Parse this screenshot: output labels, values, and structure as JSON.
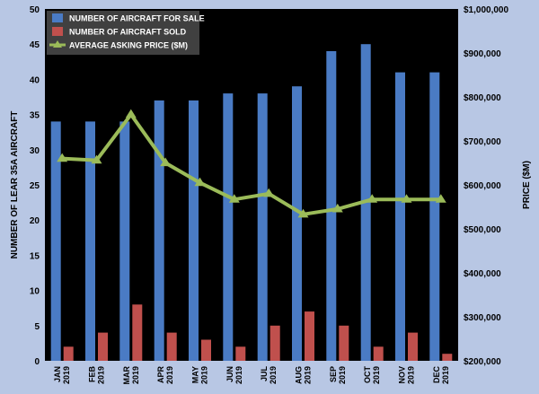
{
  "chart_data": {
    "type": "bar",
    "categories": [
      [
        "JAN",
        "2019"
      ],
      [
        "FEB",
        "2019"
      ],
      [
        "MAR",
        "2019"
      ],
      [
        "APR",
        "2019"
      ],
      [
        "MAY",
        "2019"
      ],
      [
        "JUN",
        "2019"
      ],
      [
        "JUL",
        "2019"
      ],
      [
        "AUG",
        "2019"
      ],
      [
        "SEP",
        "2019"
      ],
      [
        "OCT",
        "2019"
      ],
      [
        "NOV",
        "2019"
      ],
      [
        "DEC",
        "2019"
      ]
    ],
    "series": [
      {
        "name": "NUMBER OF AIRCRAFT FOR SALE",
        "type": "bar",
        "axis": "left",
        "color": "#4a7bc4",
        "values": [
          34,
          34,
          34,
          37,
          37,
          38,
          38,
          39,
          44,
          45,
          41,
          41
        ]
      },
      {
        "name": "NUMBER OF AIRCRAFT SOLD",
        "type": "bar",
        "axis": "left",
        "color": "#c0504d",
        "values": [
          2,
          4,
          8,
          4,
          3,
          2,
          5,
          7,
          5,
          2,
          4,
          1
        ]
      },
      {
        "name": "AVERAGE ASKING PRICE ($M)",
        "type": "line",
        "axis": "right",
        "color": "#9bbb59",
        "values": [
          660000,
          656000,
          760000,
          650000,
          605000,
          567000,
          580000,
          533000,
          545000,
          567000,
          567000,
          567000
        ]
      }
    ],
    "ylabel": "NUMBER OF LEAR 35A AIRCRAFT",
    "y2label": "PRICE ($M)",
    "ylim": [
      0,
      50
    ],
    "y2lim": [
      200000,
      1000000
    ],
    "yticks": [
      "0",
      "5",
      "10",
      "15",
      "20",
      "25",
      "30",
      "35",
      "40",
      "45",
      "50"
    ],
    "y2ticks": [
      "$200,000",
      "$300,000",
      "$400,000",
      "$500,000",
      "$600,000",
      "$700,000",
      "$800,000",
      "$900,000",
      "$1,000,000"
    ],
    "legend_position": "top-left",
    "grid": false,
    "plot_background": "#000000"
  }
}
